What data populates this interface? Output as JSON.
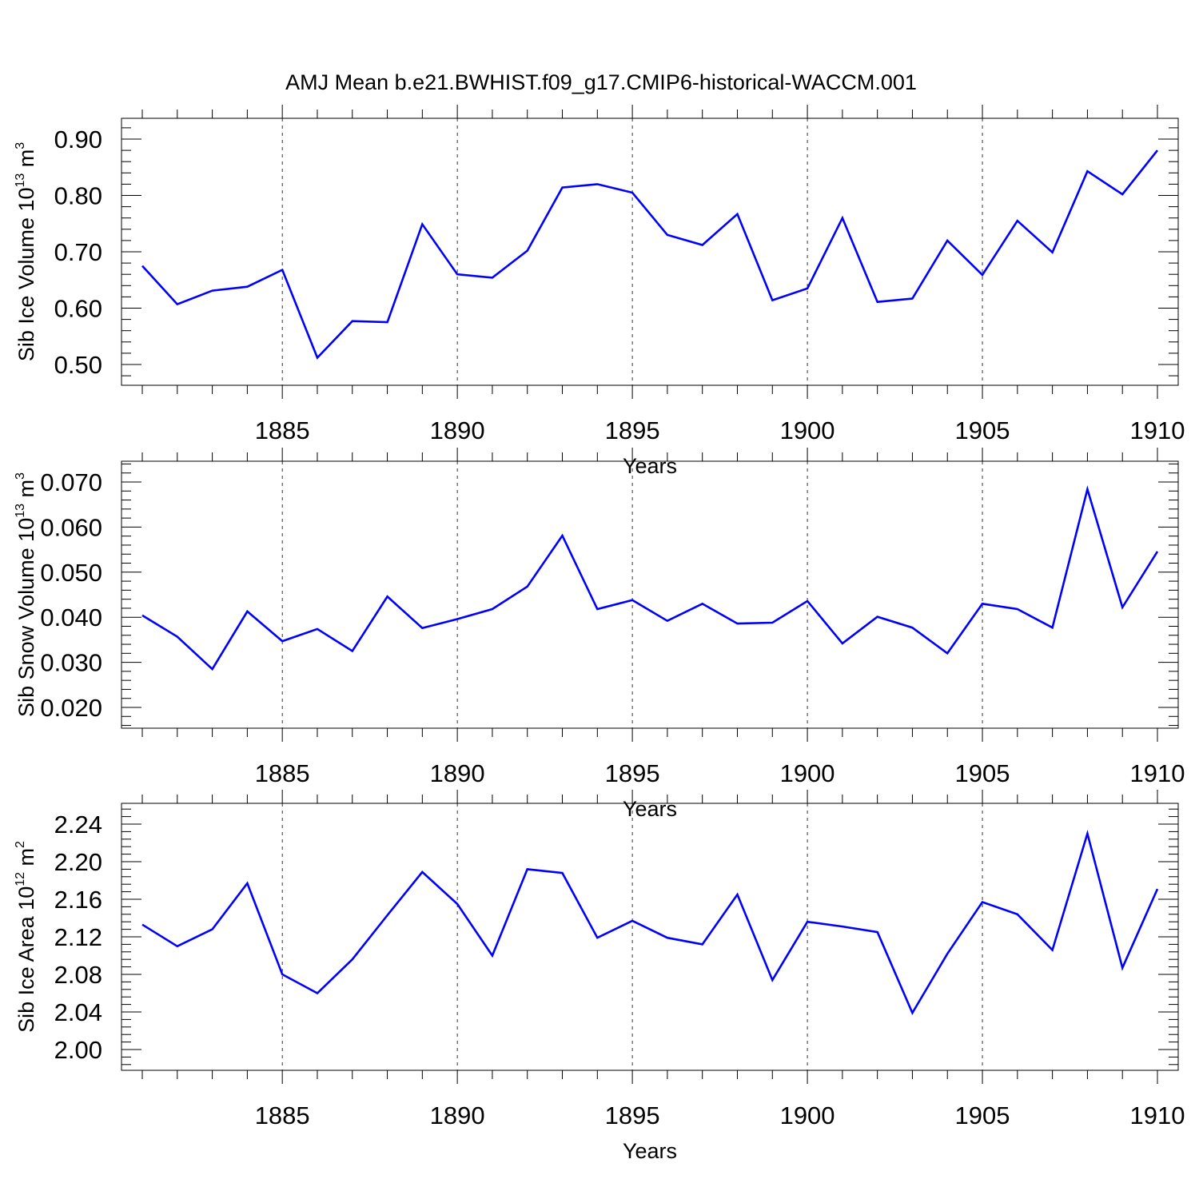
{
  "title": "AMJ Mean b.e21.BWHIST.f09_g17.CMIP6-historical-WACCM.001",
  "colors": {
    "line": "#0000ff",
    "axis": "#000000",
    "grid": "#000000",
    "background": "#ffffff"
  },
  "chart_data": [
    {
      "type": "line",
      "xlabel": "Years",
      "ylabel": "Sib Ice Volume 10",
      "ylabel_sup": "13",
      "ylabel_unit": " m",
      "ylabel_unit_sup": "3",
      "xlim": [
        1881,
        1910
      ],
      "ylim": [
        0.5,
        0.9
      ],
      "xticks": [
        "1885",
        "1890",
        "1895",
        "1900",
        "1905",
        "1910"
      ],
      "yticks": [
        "0.50",
        "0.60",
        "0.70",
        "0.80",
        "0.90"
      ],
      "grid": "vertical dashed at major x ticks",
      "x": [
        1881,
        1882,
        1883,
        1884,
        1885,
        1886,
        1887,
        1888,
        1889,
        1890,
        1891,
        1892,
        1893,
        1894,
        1895,
        1896,
        1897,
        1898,
        1899,
        1900,
        1901,
        1902,
        1903,
        1904,
        1905,
        1906,
        1907,
        1908,
        1909,
        1910
      ],
      "values": [
        0.675,
        0.607,
        0.631,
        0.638,
        0.668,
        0.512,
        0.577,
        0.575,
        0.749,
        0.66,
        0.654,
        0.702,
        0.814,
        0.82,
        0.805,
        0.73,
        0.712,
        0.767,
        0.614,
        0.635,
        0.76,
        0.611,
        0.617,
        0.72,
        0.659,
        0.755,
        0.699,
        0.843,
        0.802,
        0.88
      ]
    },
    {
      "type": "line",
      "xlabel": "Years",
      "ylabel": "Sib Snow Volume 10",
      "ylabel_sup": "13",
      "ylabel_unit": " m",
      "ylabel_unit_sup": "3",
      "xlim": [
        1881,
        1910
      ],
      "ylim": [
        0.02,
        0.07
      ],
      "xticks": [
        "1885",
        "1890",
        "1895",
        "1900",
        "1905",
        "1910"
      ],
      "yticks": [
        "0.020",
        "0.030",
        "0.040",
        "0.050",
        "0.060",
        "0.070"
      ],
      "grid": "vertical dashed at major x ticks",
      "x": [
        1881,
        1882,
        1883,
        1884,
        1885,
        1886,
        1887,
        1888,
        1889,
        1890,
        1891,
        1892,
        1893,
        1894,
        1895,
        1896,
        1897,
        1898,
        1899,
        1900,
        1901,
        1902,
        1903,
        1904,
        1905,
        1906,
        1907,
        1908,
        1909,
        1910
      ],
      "values": [
        0.0404,
        0.0357,
        0.0285,
        0.0413,
        0.0347,
        0.0374,
        0.0325,
        0.0446,
        0.0376,
        0.0396,
        0.0418,
        0.0468,
        0.0581,
        0.0418,
        0.0438,
        0.0392,
        0.043,
        0.0386,
        0.0388,
        0.0436,
        0.0342,
        0.0401,
        0.0377,
        0.032,
        0.043,
        0.0418,
        0.0377,
        0.0684,
        0.0422,
        0.0546
      ]
    },
    {
      "type": "line",
      "xlabel": "Years",
      "ylabel": "Sib Ice Area 10",
      "ylabel_sup": "12",
      "ylabel_unit": " m",
      "ylabel_unit_sup": "2",
      "xlim": [
        1881,
        1910
      ],
      "ylim": [
        2.0,
        2.24
      ],
      "xticks": [
        "1885",
        "1890",
        "1895",
        "1900",
        "1905",
        "1910"
      ],
      "yticks": [
        "2.00",
        "2.04",
        "2.08",
        "2.12",
        "2.16",
        "2.20",
        "2.24"
      ],
      "grid": "vertical dashed at major x ticks",
      "x": [
        1881,
        1882,
        1883,
        1884,
        1885,
        1886,
        1887,
        1888,
        1889,
        1890,
        1891,
        1892,
        1893,
        1894,
        1895,
        1896,
        1897,
        1898,
        1899,
        1900,
        1901,
        1902,
        1903,
        1904,
        1905,
        1906,
        1907,
        1908,
        1909,
        1910
      ],
      "values": [
        2.133,
        2.11,
        2.128,
        2.177,
        2.08,
        2.06,
        2.096,
        2.143,
        2.189,
        2.155,
        2.1,
        2.192,
        2.188,
        2.119,
        2.137,
        2.119,
        2.112,
        2.165,
        2.074,
        2.136,
        2.131,
        2.125,
        2.039,
        2.102,
        2.157,
        2.144,
        2.106,
        2.23,
        2.087,
        2.171
      ]
    }
  ]
}
